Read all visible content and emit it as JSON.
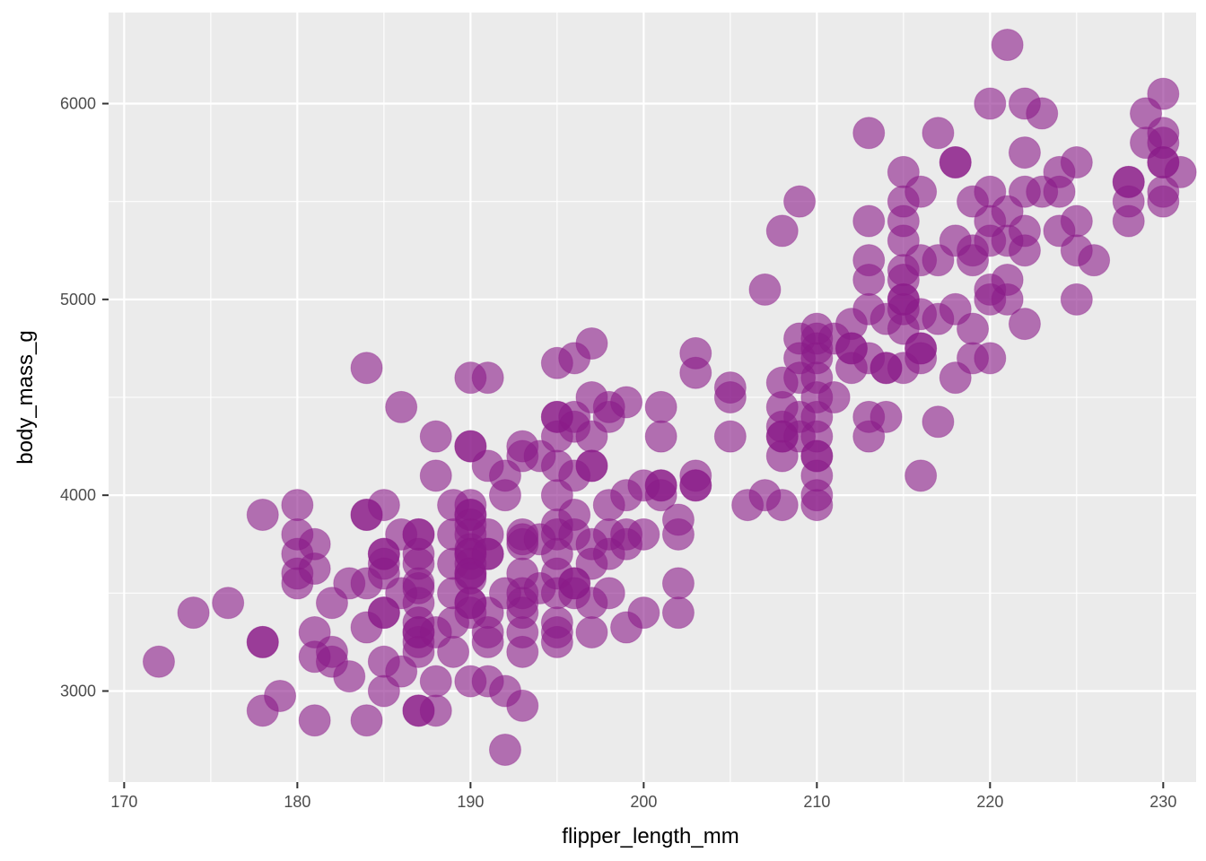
{
  "chart_data": {
    "type": "scatter",
    "title": "",
    "xlabel": "flipper_length_mm",
    "ylabel": "body_mass_g",
    "xlim": [
      169.1,
      231.9
    ],
    "ylim": [
      2535,
      6465
    ],
    "x_ticks": [
      170,
      180,
      190,
      200,
      210,
      220,
      230
    ],
    "x_tick_labels": [
      "170",
      "180",
      "190",
      "200",
      "210",
      "220",
      "230"
    ],
    "y_ticks": [
      3000,
      4000,
      5000,
      6000
    ],
    "y_tick_labels": [
      "3000",
      "4000",
      "5000",
      "6000"
    ],
    "grid": true,
    "colors": {
      "panel": "#ebebeb",
      "grid_major": "#ffffff",
      "point_fill": "#8b1a89",
      "point_opacity": 0.6
    },
    "points": [
      [
        172,
        3150
      ],
      [
        174,
        3400
      ],
      [
        176,
        3450
      ],
      [
        178,
        3900
      ],
      [
        178,
        3250
      ],
      [
        178,
        3250
      ],
      [
        178,
        2900
      ],
      [
        179,
        2975
      ],
      [
        180,
        3950
      ],
      [
        180,
        3800
      ],
      [
        180,
        3600
      ],
      [
        180,
        3550
      ],
      [
        180,
        3700
      ],
      [
        181,
        3750
      ],
      [
        181,
        3625
      ],
      [
        181,
        3300
      ],
      [
        181,
        3175
      ],
      [
        181,
        2850
      ],
      [
        182,
        3450
      ],
      [
        182,
        3150
      ],
      [
        182,
        3200
      ],
      [
        183,
        3550
      ],
      [
        183,
        3075
      ],
      [
        184,
        4650
      ],
      [
        184,
        3900
      ],
      [
        184,
        3900
      ],
      [
        184,
        3550
      ],
      [
        184,
        3325
      ],
      [
        184,
        2850
      ],
      [
        185,
        3950
      ],
      [
        185,
        3700
      ],
      [
        185,
        3700
      ],
      [
        185,
        3650
      ],
      [
        185,
        3600
      ],
      [
        185,
        3400
      ],
      [
        185,
        3400
      ],
      [
        185,
        3150
      ],
      [
        185,
        3000
      ],
      [
        186,
        4450
      ],
      [
        186,
        3800
      ],
      [
        186,
        3500
      ],
      [
        186,
        3100
      ],
      [
        187,
        3800
      ],
      [
        187,
        3800
      ],
      [
        187,
        3700
      ],
      [
        187,
        3650
      ],
      [
        187,
        3550
      ],
      [
        187,
        3525
      ],
      [
        187,
        3450
      ],
      [
        187,
        3350
      ],
      [
        187,
        3300
      ],
      [
        187,
        3300
      ],
      [
        187,
        3250
      ],
      [
        187,
        3200
      ],
      [
        187,
        2900
      ],
      [
        187,
        2900
      ],
      [
        188,
        4300
      ],
      [
        188,
        4100
      ],
      [
        188,
        3300
      ],
      [
        188,
        3050
      ],
      [
        188,
        2900
      ],
      [
        189,
        3950
      ],
      [
        189,
        3800
      ],
      [
        189,
        3650
      ],
      [
        189,
        3500
      ],
      [
        189,
        3350
      ],
      [
        189,
        3200
      ],
      [
        190,
        4600
      ],
      [
        190,
        4250
      ],
      [
        190,
        4250
      ],
      [
        190,
        3950
      ],
      [
        190,
        3900
      ],
      [
        190,
        3900
      ],
      [
        190,
        3850
      ],
      [
        190,
        3800
      ],
      [
        190,
        3725
      ],
      [
        190,
        3700
      ],
      [
        190,
        3700
      ],
      [
        190,
        3650
      ],
      [
        190,
        3600
      ],
      [
        190,
        3600
      ],
      [
        190,
        3575
      ],
      [
        190,
        3450
      ],
      [
        190,
        3450
      ],
      [
        190,
        3400
      ],
      [
        190,
        3050
      ],
      [
        191,
        4600
      ],
      [
        191,
        4150
      ],
      [
        191,
        3800
      ],
      [
        191,
        3700
      ],
      [
        191,
        3700
      ],
      [
        191,
        3400
      ],
      [
        191,
        3300
      ],
      [
        191,
        3250
      ],
      [
        191,
        3050
      ],
      [
        192,
        4100
      ],
      [
        192,
        4000
      ],
      [
        192,
        3500
      ],
      [
        192,
        3000
      ],
      [
        192,
        2700
      ],
      [
        193,
        4250
      ],
      [
        193,
        4200
      ],
      [
        193,
        3800
      ],
      [
        193,
        3775
      ],
      [
        193,
        3750
      ],
      [
        193,
        3600
      ],
      [
        193,
        3500
      ],
      [
        193,
        3450
      ],
      [
        193,
        3400
      ],
      [
        193,
        3300
      ],
      [
        193,
        3200
      ],
      [
        193,
        2925
      ],
      [
        194,
        4200
      ],
      [
        194,
        3775
      ],
      [
        194,
        3525
      ],
      [
        195,
        4675
      ],
      [
        195,
        4400
      ],
      [
        195,
        4400
      ],
      [
        195,
        4300
      ],
      [
        195,
        4150
      ],
      [
        195,
        4000
      ],
      [
        195,
        3850
      ],
      [
        195,
        3800
      ],
      [
        195,
        3700
      ],
      [
        195,
        3600
      ],
      [
        195,
        3500
      ],
      [
        195,
        3350
      ],
      [
        195,
        3300
      ],
      [
        195,
        3250
      ],
      [
        196,
        4700
      ],
      [
        196,
        4400
      ],
      [
        196,
        4350
      ],
      [
        196,
        4100
      ],
      [
        196,
        3900
      ],
      [
        196,
        3800
      ],
      [
        196,
        3550
      ],
      [
        196,
        3550
      ],
      [
        196,
        3500
      ],
      [
        197,
        4775
      ],
      [
        197,
        4500
      ],
      [
        197,
        4300
      ],
      [
        197,
        4150
      ],
      [
        197,
        4150
      ],
      [
        197,
        3750
      ],
      [
        197,
        3650
      ],
      [
        197,
        3450
      ],
      [
        197,
        3300
      ],
      [
        198,
        4450
      ],
      [
        198,
        4400
      ],
      [
        198,
        3950
      ],
      [
        198,
        3800
      ],
      [
        198,
        3700
      ],
      [
        198,
        3500
      ],
      [
        199,
        4475
      ],
      [
        199,
        4000
      ],
      [
        199,
        3800
      ],
      [
        199,
        3750
      ],
      [
        199,
        3325
      ],
      [
        200,
        4050
      ],
      [
        200,
        3800
      ],
      [
        200,
        3400
      ],
      [
        201,
        4450
      ],
      [
        201,
        4300
      ],
      [
        201,
        4050
      ],
      [
        201,
        4050
      ],
      [
        201,
        4000
      ],
      [
        202,
        3875
      ],
      [
        202,
        3800
      ],
      [
        202,
        3550
      ],
      [
        202,
        3400
      ],
      [
        203,
        4725
      ],
      [
        203,
        4625
      ],
      [
        203,
        4100
      ],
      [
        203,
        4050
      ],
      [
        203,
        4050
      ],
      [
        205,
        4550
      ],
      [
        205,
        4500
      ],
      [
        205,
        4300
      ],
      [
        206,
        3950
      ],
      [
        207,
        5050
      ],
      [
        207,
        4000
      ],
      [
        208,
        5350
      ],
      [
        208,
        4575
      ],
      [
        208,
        4450
      ],
      [
        208,
        4350
      ],
      [
        208,
        4300
      ],
      [
        208,
        4300
      ],
      [
        208,
        4200
      ],
      [
        208,
        3950
      ],
      [
        209,
        5500
      ],
      [
        209,
        4800
      ],
      [
        209,
        4700
      ],
      [
        209,
        4600
      ],
      [
        209,
        4400
      ],
      [
        209,
        4300
      ],
      [
        210,
        4850
      ],
      [
        210,
        4800
      ],
      [
        210,
        4750
      ],
      [
        210,
        4700
      ],
      [
        210,
        4600
      ],
      [
        210,
        4500
      ],
      [
        210,
        4400
      ],
      [
        210,
        4300
      ],
      [
        210,
        4200
      ],
      [
        210,
        4200
      ],
      [
        210,
        4100
      ],
      [
        210,
        4000
      ],
      [
        210,
        3950
      ],
      [
        211,
        4800
      ],
      [
        211,
        4500
      ],
      [
        212,
        4875
      ],
      [
        212,
        4750
      ],
      [
        212,
        4750
      ],
      [
        212,
        4650
      ],
      [
        213,
        5850
      ],
      [
        213,
        5400
      ],
      [
        213,
        5200
      ],
      [
        213,
        5100
      ],
      [
        213,
        4950
      ],
      [
        213,
        4700
      ],
      [
        213,
        4400
      ],
      [
        213,
        4300
      ],
      [
        214,
        4900
      ],
      [
        214,
        4650
      ],
      [
        214,
        4650
      ],
      [
        214,
        4400
      ],
      [
        215,
        5650
      ],
      [
        215,
        5500
      ],
      [
        215,
        5400
      ],
      [
        215,
        5300
      ],
      [
        215,
        5150
      ],
      [
        215,
        5100
      ],
      [
        215,
        5000
      ],
      [
        215,
        5000
      ],
      [
        215,
        4950
      ],
      [
        215,
        4850
      ],
      [
        215,
        4650
      ],
      [
        216,
        5550
      ],
      [
        216,
        5200
      ],
      [
        216,
        4925
      ],
      [
        216,
        4750
      ],
      [
        216,
        4750
      ],
      [
        216,
        4700
      ],
      [
        216,
        4100
      ],
      [
        217,
        5850
      ],
      [
        217,
        5200
      ],
      [
        217,
        4900
      ],
      [
        217,
        4375
      ],
      [
        218,
        5700
      ],
      [
        218,
        5700
      ],
      [
        218,
        5300
      ],
      [
        218,
        4950
      ],
      [
        218,
        4600
      ],
      [
        219,
        5500
      ],
      [
        219,
        5250
      ],
      [
        219,
        5200
      ],
      [
        219,
        4850
      ],
      [
        219,
        4700
      ],
      [
        220,
        6000
      ],
      [
        220,
        5550
      ],
      [
        220,
        5400
      ],
      [
        220,
        5300
      ],
      [
        220,
        5050
      ],
      [
        220,
        5000
      ],
      [
        220,
        4700
      ],
      [
        221,
        6300
      ],
      [
        221,
        5450
      ],
      [
        221,
        5300
      ],
      [
        221,
        5100
      ],
      [
        221,
        5000
      ],
      [
        222,
        6000
      ],
      [
        222,
        5750
      ],
      [
        222,
        5550
      ],
      [
        222,
        5350
      ],
      [
        222,
        5250
      ],
      [
        222,
        4875
      ],
      [
        223,
        5950
      ],
      [
        223,
        5550
      ],
      [
        224,
        5650
      ],
      [
        224,
        5550
      ],
      [
        224,
        5350
      ],
      [
        225,
        5700
      ],
      [
        225,
        5400
      ],
      [
        225,
        5250
      ],
      [
        225,
        5000
      ],
      [
        226,
        5200
      ],
      [
        228,
        5600
      ],
      [
        228,
        5600
      ],
      [
        228,
        5500
      ],
      [
        228,
        5400
      ],
      [
        229,
        5950
      ],
      [
        229,
        5800
      ],
      [
        230,
        6050
      ],
      [
        230,
        5850
      ],
      [
        230,
        5800
      ],
      [
        230,
        5700
      ],
      [
        230,
        5700
      ],
      [
        230,
        5550
      ],
      [
        230,
        5500
      ],
      [
        231,
        5650
      ]
    ]
  }
}
